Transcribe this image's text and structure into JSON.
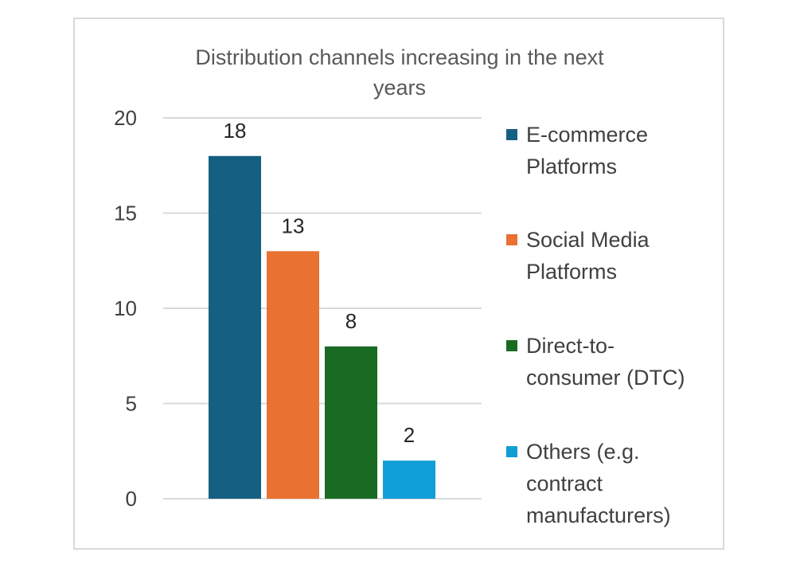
{
  "chart_data": {
    "type": "bar",
    "title_lines": [
      "Distribution channels increasing in the next",
      "years"
    ],
    "categories": [
      "E-commerce Platforms",
      "Social Media Platforms",
      "Direct-to-consumer (DTC)",
      "Others (e.g. contract manufacturers)"
    ],
    "series": [
      {
        "name": "E-commerce Platforms",
        "value": 18,
        "color": "#156082",
        "legend_lines": [
          "E-commerce",
          "Platforms"
        ]
      },
      {
        "name": "Social Media Platforms",
        "value": 13,
        "color": "#E97132",
        "legend_lines": [
          "Social Media",
          "Platforms"
        ]
      },
      {
        "name": "Direct-to-consumer (DTC)",
        "value": 8,
        "color": "#196B24",
        "legend_lines": [
          "Direct-to-",
          "consumer (DTC)"
        ]
      },
      {
        "name": "Others (e.g. contract manufacturers)",
        "value": 2,
        "color": "#0F9ED5",
        "legend_lines": [
          "Others (e.g.",
          "contract",
          "manufacturers)"
        ]
      }
    ],
    "y_ticks": [
      "0",
      "5",
      "10",
      "15",
      "20"
    ],
    "ylim": [
      0,
      20
    ],
    "grid": true,
    "legend_position": "right",
    "data_labels": true
  }
}
